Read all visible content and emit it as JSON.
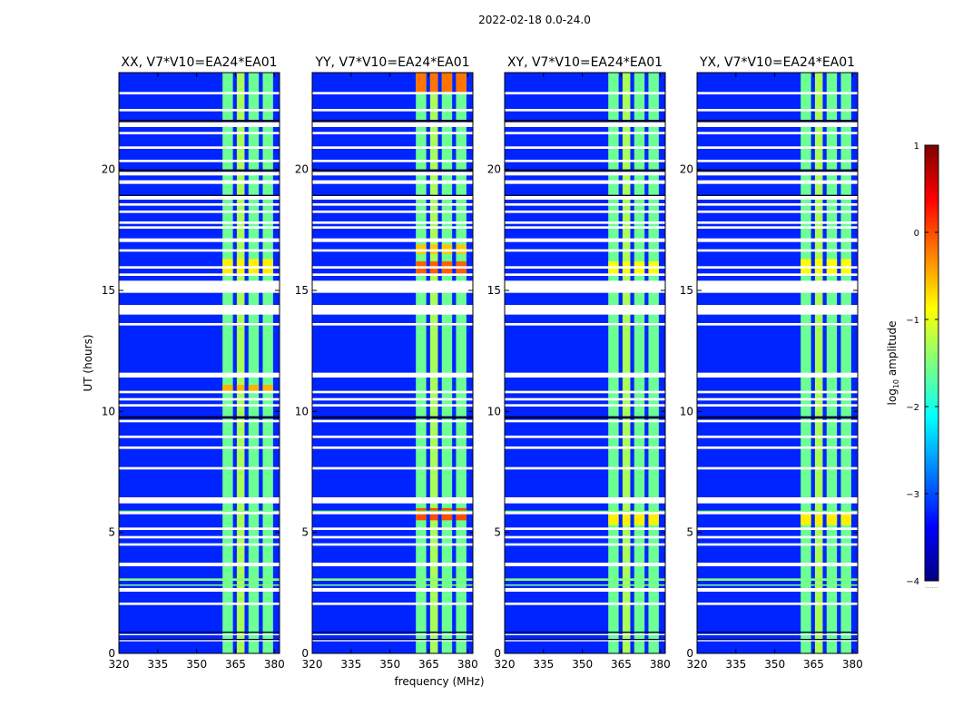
{
  "chart_data": {
    "type": "heatmap",
    "title": "2022-02-18 0.0-24.0",
    "xlabel": "frequency (MHz)",
    "ylabel": "UT (hours)",
    "xlim": [
      320,
      382
    ],
    "ylim": [
      0,
      24
    ],
    "x_ticks": [
      320,
      335,
      350,
      365,
      380
    ],
    "y_ticks": [
      0,
      5,
      10,
      15,
      20
    ],
    "panels": [
      {
        "title": "XX, V7*V10=EA24*EA01"
      },
      {
        "title": "YY, V7*V10=EA24*EA01"
      },
      {
        "title": "XY, V7*V10=EA24*EA01"
      },
      {
        "title": "YX, V7*V10=EA24*EA01"
      }
    ],
    "band_columns_mhz": [
      [
        360,
        364
      ],
      [
        365.5,
        368.5
      ],
      [
        370,
        374
      ],
      [
        375.5,
        379.5
      ]
    ],
    "background_log10_amplitude": -3.2,
    "band_log10_amplitude": [
      -1.6,
      -1.3,
      -1.6,
      -1.6
    ],
    "hot_spots": [
      {
        "panel": 1,
        "hours": [
          23.2,
          24.0
        ],
        "log10_amplitude": -0.2
      },
      {
        "panel": 1,
        "hours": [
          15.6,
          16.2
        ],
        "log10_amplitude": -0.1
      },
      {
        "panel": 1,
        "hours": [
          16.5,
          16.9
        ],
        "log10_amplitude": -0.6
      },
      {
        "panel": 1,
        "hours": [
          5.5,
          6.0
        ],
        "log10_amplitude": 0.0
      },
      {
        "panel": 0,
        "hours": [
          10.8,
          11.1
        ],
        "log10_amplitude": -0.5
      },
      {
        "panel": 0,
        "hours": [
          15.6,
          16.3
        ],
        "log10_amplitude": -0.8
      },
      {
        "panel": 2,
        "hours": [
          5.3,
          5.9
        ],
        "log10_amplitude": -0.8
      },
      {
        "panel": 2,
        "hours": [
          15.6,
          16.2
        ],
        "log10_amplitude": -0.9
      },
      {
        "panel": 3,
        "hours": [
          5.3,
          5.9
        ],
        "log10_amplitude": -0.8
      },
      {
        "panel": 3,
        "hours": [
          15.6,
          16.3
        ],
        "log10_amplitude": -0.9
      }
    ],
    "flagged_intervals_hours": [
      [
        23.1,
        23.2
      ],
      [
        22.4,
        22.5
      ],
      [
        21.75,
        21.95
      ],
      [
        21.45,
        21.55
      ],
      [
        20.85,
        20.95
      ],
      [
        20.3,
        20.4
      ],
      [
        19.75,
        19.9
      ],
      [
        19.4,
        19.55
      ],
      [
        18.75,
        18.9
      ],
      [
        18.5,
        18.6
      ],
      [
        18.2,
        18.3
      ],
      [
        17.75,
        17.85
      ],
      [
        17.55,
        17.65
      ],
      [
        17.0,
        17.15
      ],
      [
        16.6,
        16.7
      ],
      [
        15.9,
        16.0
      ],
      [
        15.6,
        15.7
      ],
      [
        15.3,
        15.4
      ],
      [
        14.9,
        15.3
      ],
      [
        14.0,
        14.4
      ],
      [
        13.55,
        13.65
      ],
      [
        11.4,
        11.6
      ],
      [
        10.75,
        10.85
      ],
      [
        10.45,
        10.55
      ],
      [
        10.2,
        10.3
      ],
      [
        9.55,
        9.65
      ],
      [
        8.9,
        9.0
      ],
      [
        8.45,
        8.55
      ],
      [
        7.6,
        7.7
      ],
      [
        6.2,
        6.45
      ],
      [
        5.75,
        5.85
      ],
      [
        5.1,
        5.2
      ],
      [
        4.75,
        4.85
      ],
      [
        4.45,
        4.55
      ],
      [
        3.6,
        3.75
      ],
      [
        2.55,
        2.7
      ],
      [
        2.0,
        2.1
      ],
      [
        0.75,
        0.8
      ],
      [
        0.5,
        0.55
      ]
    ],
    "dark_gap_intervals_hours": [
      [
        21.95,
        22.05
      ],
      [
        19.9,
        20.0
      ],
      [
        18.85,
        18.95
      ],
      [
        13.55,
        13.6
      ],
      [
        9.7,
        9.8
      ],
      [
        0.85,
        0.9
      ],
      [
        0.55,
        0.6
      ]
    ],
    "green_line_intervals_hours": [
      [
        3.0,
        3.1
      ],
      [
        2.8,
        2.85
      ],
      [
        5.85,
        5.9
      ]
    ],
    "colorbar": {
      "label_prefix": "log",
      "label_subscript": "10",
      "label_suffix": " amplitude",
      "range": [
        -4,
        1
      ],
      "ticks": [
        "1",
        "0",
        "−1",
        "−2",
        "−3",
        "−4"
      ],
      "tick_values": [
        1,
        0,
        -1,
        -2,
        -3,
        -4
      ],
      "footer": "......",
      "colormap": "jet"
    }
  }
}
